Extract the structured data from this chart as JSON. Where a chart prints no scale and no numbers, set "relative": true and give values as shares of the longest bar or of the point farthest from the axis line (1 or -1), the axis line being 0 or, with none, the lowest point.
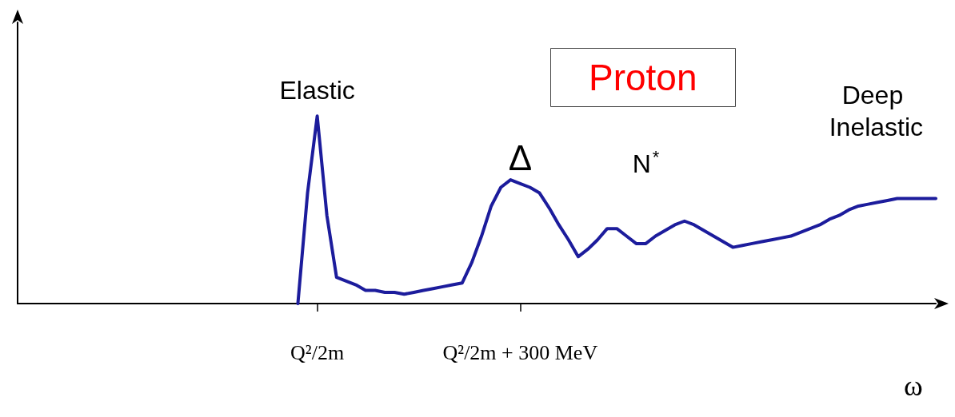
{
  "chart_data": {
    "type": "line",
    "title": "Proton",
    "xlabel": "ω",
    "relative": true,
    "color": "#1c1c9c",
    "marker": "none",
    "categories": [
      null,
      null,
      null,
      null,
      null,
      null,
      null,
      null,
      null,
      null,
      null,
      null,
      null,
      null,
      null,
      null,
      null,
      null,
      null,
      null,
      null,
      null,
      null,
      null,
      null,
      null,
      null,
      null,
      null,
      null,
      null,
      "Q²/2m",
      null,
      null,
      null,
      null,
      null,
      null,
      null,
      null,
      null,
      null,
      null,
      null,
      null,
      null,
      null,
      null,
      null,
      null,
      null,
      null,
      "Q²/2m + 300 MeV",
      null,
      null,
      null,
      null,
      null,
      null,
      null,
      null,
      null,
      null,
      null,
      null,
      null,
      null,
      null,
      null,
      null,
      null,
      null,
      null,
      null,
      null,
      null,
      null,
      null,
      null,
      null,
      null,
      null,
      null,
      null,
      null,
      null,
      null,
      null,
      null,
      null,
      null,
      null,
      null,
      null,
      null,
      null
    ],
    "values": [
      null,
      null,
      null,
      null,
      null,
      null,
      null,
      null,
      null,
      null,
      null,
      null,
      null,
      null,
      null,
      null,
      null,
      null,
      null,
      null,
      null,
      null,
      null,
      null,
      null,
      null,
      null,
      null,
      null,
      0,
      0.59,
      1,
      0.47,
      0.14,
      0.12,
      0.1,
      0.07,
      0.07,
      0.06,
      0.06,
      0.05,
      0.06,
      0.07,
      0.08,
      0.09,
      0.1,
      0.11,
      0.22,
      0.36,
      0.52,
      0.62,
      0.66,
      0.64,
      0.62,
      0.59,
      0.51,
      0.42,
      0.34,
      0.25,
      0.29,
      0.34,
      0.4,
      0.4,
      0.36,
      0.32,
      0.32,
      0.36,
      0.39,
      0.42,
      0.44,
      0.42,
      0.39,
      0.36,
      0.33,
      0.3,
      0.31,
      0.32,
      0.33,
      0.34,
      0.35,
      0.36,
      0.38,
      0.4,
      0.42,
      0.45,
      0.47,
      0.5,
      0.52,
      0.53,
      0.54,
      0.55,
      0.56,
      0.56,
      0.56,
      0.56,
      0.56
    ],
    "annotations": [
      {
        "text": "Elastic",
        "x": "Q²/2m",
        "y": 1
      },
      {
        "text": "Δ",
        "x": "Q²/2m + 300 MeV",
        "y": 0.64
      },
      "N$^{*}$",
      "Deep Inelastic"
    ]
  }
}
